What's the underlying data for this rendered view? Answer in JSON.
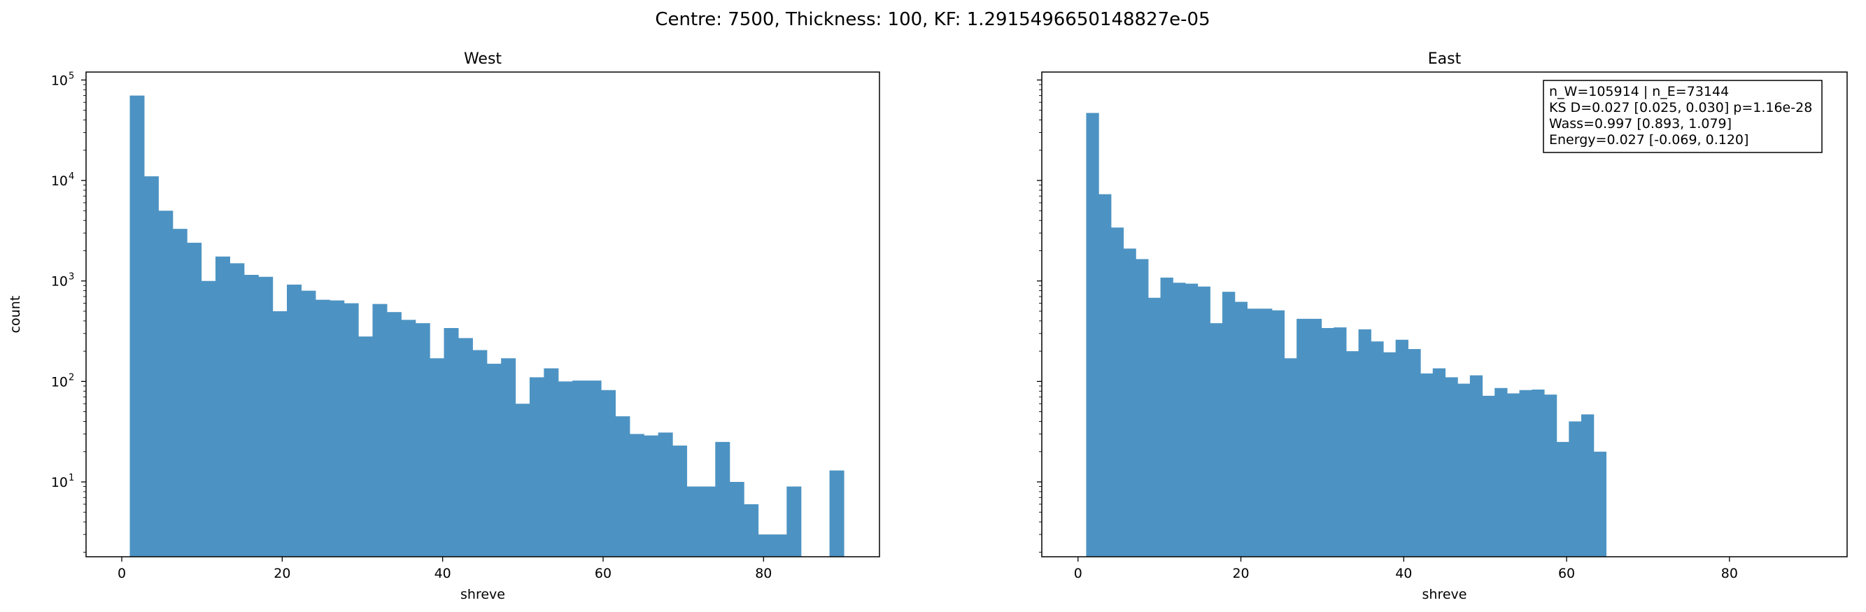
{
  "figure": {
    "suptitle": "Centre: 7500, Thickness: 100, KF: 1.2915496650148827e-05"
  },
  "chart_data": [
    {
      "type": "bar",
      "title": "West",
      "xlabel": "shreve",
      "ylabel": "count",
      "yscale": "log",
      "xlim": [
        -4.45,
        94.45
      ],
      "ylim": [
        1.8,
        120000
      ],
      "bin_width": 1.78,
      "x": [
        1.89,
        3.67,
        5.45,
        7.23,
        9.01,
        10.79,
        12.57,
        14.35,
        16.13,
        17.91,
        19.69,
        21.47,
        23.25,
        25.03,
        26.81,
        28.59,
        30.37,
        32.15,
        33.93,
        35.71,
        37.49,
        39.27,
        41.05,
        42.83,
        44.61,
        46.39,
        48.17,
        49.95,
        51.73,
        53.51,
        55.29,
        57.07,
        58.85,
        60.63,
        62.41,
        64.19,
        65.97,
        67.75,
        69.53,
        71.31,
        73.09,
        74.87,
        76.65,
        78.43,
        80.21,
        81.99,
        83.77,
        85.55,
        87.33,
        89.11
      ],
      "values": [
        70000,
        11000,
        5000,
        3300,
        2400,
        1000,
        1750,
        1500,
        1150,
        1100,
        500,
        920,
        800,
        650,
        640,
        600,
        280,
        590,
        490,
        410,
        380,
        170,
        340,
        270,
        205,
        150,
        170,
        60,
        110,
        135,
        100,
        102,
        102,
        82,
        45,
        30,
        29,
        31,
        23,
        9,
        9,
        25,
        10,
        6,
        3,
        3,
        9,
        0,
        0,
        13
      ],
      "xticks": [
        "0",
        "20",
        "40",
        "60",
        "80"
      ],
      "yticks": [
        "10",
        "10",
        "10",
        "10",
        "10"
      ],
      "ytick_exponents": [
        "1",
        "2",
        "3",
        "4",
        "5"
      ],
      "color": "#4c93c3",
      "grid": false
    },
    {
      "type": "bar",
      "title": "East",
      "xlabel": "shreve",
      "ylabel": "",
      "yscale": "log",
      "xlim": [
        -4.45,
        94.45
      ],
      "ylim": [
        1.8,
        120000
      ],
      "bin_width": 1.52,
      "x": [
        1.76,
        3.28,
        4.8,
        6.32,
        7.84,
        9.36,
        10.88,
        12.4,
        13.92,
        15.44,
        16.96,
        18.48,
        20,
        21.52,
        23.04,
        24.56,
        26.08,
        27.6,
        29.12,
        30.64,
        32.16,
        33.68,
        35.2,
        36.72,
        38.24,
        39.76,
        41.28,
        42.8,
        44.32,
        45.84,
        47.36,
        48.88,
        50.4,
        51.92,
        53.44,
        54.96,
        56.48,
        58,
        59.52,
        61.04,
        62.56,
        64.08,
        65.6,
        67.12,
        68.64,
        70.16,
        71.68,
        73.2,
        74.72,
        76.24
      ],
      "values": [
        47000,
        7300,
        3400,
        2100,
        1650,
        680,
        1080,
        960,
        940,
        880,
        380,
        780,
        620,
        530,
        530,
        510,
        170,
        420,
        420,
        340,
        345,
        200,
        330,
        250,
        195,
        260,
        210,
        120,
        135,
        110,
        95,
        115,
        72,
        86,
        76,
        82,
        83,
        74,
        25,
        40,
        47,
        20,
        0,
        0,
        0,
        0,
        0,
        0,
        0,
        0
      ],
      "xticks": [
        "0",
        "20",
        "40",
        "60",
        "80"
      ],
      "annotation": [
        "n_W=105914 | n_E=73144",
        "KS D=0.027 [0.025, 0.030]  p=1.16e-28",
        "Wass=0.997 [0.893, 1.079]",
        "Energy=0.027 [-0.069, 0.120]"
      ],
      "color": "#4c93c3",
      "grid": false
    }
  ]
}
